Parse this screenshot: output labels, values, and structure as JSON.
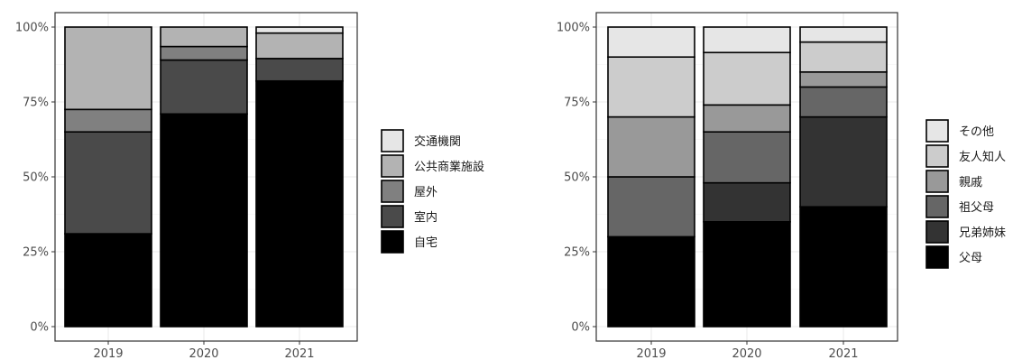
{
  "chart_data": [
    {
      "type": "bar",
      "stacked": true,
      "categories": [
        "2019",
        "2020",
        "2021"
      ],
      "ylim": [
        0,
        1
      ],
      "y_ticks": [
        "0%",
        "25%",
        "50%",
        "75%",
        "100%"
      ],
      "y_tick_values": [
        0,
        0.25,
        0.5,
        0.75,
        1
      ],
      "grid": true,
      "legend_position": "right",
      "series": [
        {
          "name": "自宅",
          "color": "#000000",
          "values": [
            0.31,
            0.71,
            0.82
          ]
        },
        {
          "name": "室内",
          "color": "#4a4a4a",
          "values": [
            0.34,
            0.18,
            0.075
          ]
        },
        {
          "name": "屋外",
          "color": "#808080",
          "values": [
            0.075,
            0.045,
            0.0
          ]
        },
        {
          "name": "公共商業施設",
          "color": "#b3b3b3",
          "values": [
            0.275,
            0.065,
            0.085
          ]
        },
        {
          "name": "交通機関",
          "color": "#e6e6e6",
          "values": [
            0.0,
            0.0,
            0.02
          ]
        }
      ]
    },
    {
      "type": "bar",
      "stacked": true,
      "categories": [
        "2019",
        "2020",
        "2021"
      ],
      "ylim": [
        0,
        1
      ],
      "y_ticks": [
        "0%",
        "25%",
        "50%",
        "75%",
        "100%"
      ],
      "y_tick_values": [
        0,
        0.25,
        0.5,
        0.75,
        1
      ],
      "grid": true,
      "legend_position": "right",
      "series": [
        {
          "name": "父母",
          "color": "#000000",
          "values": [
            0.3,
            0.35,
            0.4
          ]
        },
        {
          "name": "兄弟姉妹",
          "color": "#333333",
          "values": [
            0.0,
            0.13,
            0.3
          ]
        },
        {
          "name": "祖父母",
          "color": "#666666",
          "values": [
            0.2,
            0.17,
            0.1
          ]
        },
        {
          "name": "親戚",
          "color": "#999999",
          "values": [
            0.2,
            0.09,
            0.05
          ]
        },
        {
          "name": "友人知人",
          "color": "#cccccc",
          "values": [
            0.2,
            0.175,
            0.1
          ]
        },
        {
          "name": "その他",
          "color": "#e6e6e6",
          "values": [
            0.1,
            0.085,
            0.05
          ]
        }
      ]
    }
  ]
}
